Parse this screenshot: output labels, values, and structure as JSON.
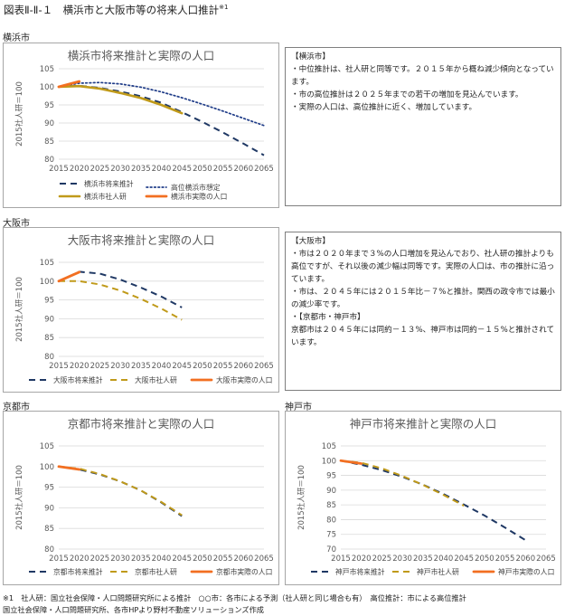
{
  "figure_title": "図表Ⅱ-Ⅱ-１　横浜市と大阪市等の将来人口推計",
  "figure_title_note": "※1",
  "colors": {
    "navy": "#1f3864",
    "mustard": "#c09a1a",
    "orange": "#f26f21",
    "blue_dotted": "#1f3c88"
  },
  "panels": [
    {
      "label": "横浜市",
      "note": {
        "heading": "【横浜市】",
        "lines": [
          "・中位推計は、社人研と同等です。２０１５年から概ね減少傾向となっています。",
          "・市の高位推計は２０２５年までの若干の増加を見込んでいます。",
          "・実際の人口は、高位推計に近く、増加しています。"
        ]
      }
    },
    {
      "label": "大阪市",
      "note": {
        "heading": "【大阪市】",
        "lines": [
          "・市は２０２０年まで３%の人口増加を見込んでおり、社人研の推計よりも高位ですが、それ以後の減少幅は同等です。実際の人口は、市の推計に沿っています。",
          "・市は、２０４５年には２０１５年比－７%と推計。関西の政令市では最小の減少率です。",
          "・【京都市・神戸市】",
          "京都市は２０４５年には同約－１３%、神戸市は同約－１５%と推計されています。"
        ]
      }
    },
    {
      "label": "京都市"
    },
    {
      "label": "神戸市"
    }
  ],
  "chart_data": [
    {
      "type": "line",
      "title": "横浜市将来推計と実際の人口",
      "ylabel": "2015社人研＝100",
      "xlim": [
        2015,
        2065
      ],
      "ylim": [
        80,
        105
      ],
      "x_ticks": [
        2015,
        2020,
        2025,
        2030,
        2035,
        2040,
        2045,
        2050,
        2055,
        2060,
        2065
      ],
      "y_ticks": [
        80,
        85,
        90,
        95,
        100,
        105
      ],
      "grid": true,
      "legend_position": "bottom",
      "series": [
        {
          "name": "横浜市将来推計",
          "style": "dash",
          "color": "#1f3864",
          "x": [
            2015,
            2020,
            2025,
            2030,
            2035,
            2040,
            2045,
            2050,
            2055,
            2060,
            2065
          ],
          "y": [
            100,
            100.3,
            99.7,
            98.7,
            97.4,
            95.6,
            93.0,
            90.3,
            87.4,
            84.3,
            81.1
          ]
        },
        {
          "name": "高位横浜市想定",
          "style": "dot",
          "color": "#1f3c88",
          "x": [
            2015,
            2020,
            2025,
            2030,
            2035,
            2040,
            2045,
            2050,
            2055,
            2060,
            2065
          ],
          "y": [
            100,
            101.0,
            101.2,
            100.8,
            99.9,
            98.6,
            97.0,
            95.2,
            93.3,
            91.3,
            89.3
          ]
        },
        {
          "name": "横浜市社人研",
          "style": "solid",
          "color": "#c09a1a",
          "x": [
            2015,
            2020,
            2025,
            2030,
            2035,
            2040,
            2045
          ],
          "y": [
            100,
            100.2,
            99.5,
            98.3,
            96.9,
            95.0,
            92.7
          ]
        },
        {
          "name": "横浜市実際の人口",
          "style": "solid-thick",
          "color": "#f26f21",
          "x": [
            2015,
            2020
          ],
          "y": [
            100,
            101.5
          ]
        }
      ]
    },
    {
      "type": "line",
      "title": "大阪市将来推計と実際の人口",
      "ylabel": "2015社人研＝100",
      "xlim": [
        2015,
        2065
      ],
      "ylim": [
        80,
        105
      ],
      "x_ticks": [
        2015,
        2020,
        2025,
        2030,
        2035,
        2040,
        2045,
        2050,
        2055,
        2060,
        2065
      ],
      "y_ticks": [
        80,
        85,
        90,
        95,
        100,
        105
      ],
      "grid": true,
      "legend_position": "bottom",
      "series": [
        {
          "name": "大阪市将来推計",
          "style": "dash",
          "color": "#1f3864",
          "x": [
            2015,
            2020,
            2025,
            2030,
            2035,
            2040,
            2045
          ],
          "y": [
            100,
            102.5,
            102.0,
            100.4,
            98.3,
            95.9,
            93.0
          ]
        },
        {
          "name": "大阪市社人研",
          "style": "dash",
          "color": "#c09a1a",
          "x": [
            2015,
            2020,
            2025,
            2030,
            2035,
            2040,
            2045
          ],
          "y": [
            100,
            100.0,
            99.1,
            97.5,
            95.3,
            92.7,
            89.7
          ]
        },
        {
          "name": "大阪市実際の人口",
          "style": "solid-thick",
          "color": "#f26f21",
          "x": [
            2015,
            2020
          ],
          "y": [
            100,
            102.4
          ]
        }
      ]
    },
    {
      "type": "line",
      "title": "京都市将来推計と実際の人口",
      "ylabel": "2015社人研＝100",
      "xlim": [
        2015,
        2065
      ],
      "ylim": [
        80,
        105
      ],
      "x_ticks": [
        2015,
        2020,
        2025,
        2030,
        2035,
        2040,
        2045,
        2050,
        2055,
        2060,
        2065
      ],
      "y_ticks": [
        80,
        85,
        90,
        95,
        100,
        105
      ],
      "grid": true,
      "legend_position": "bottom",
      "series": [
        {
          "name": "京都市将来推計",
          "style": "dash",
          "color": "#1f3864",
          "x": [
            2015,
            2020,
            2025,
            2030,
            2035,
            2040,
            2045
          ],
          "y": [
            100,
            99.3,
            98.1,
            96.4,
            94.2,
            91.3,
            88.0
          ]
        },
        {
          "name": "京都市社人研",
          "style": "dash",
          "color": "#c09a1a",
          "x": [
            2015,
            2020,
            2025,
            2030,
            2035,
            2040,
            2045
          ],
          "y": [
            100,
            99.5,
            98.2,
            96.4,
            94.2,
            91.4,
            88.2
          ]
        },
        {
          "name": "京都市実際の人口",
          "style": "solid-thick",
          "color": "#f26f21",
          "x": [
            2015,
            2020
          ],
          "y": [
            100,
            99.3
          ]
        }
      ]
    },
    {
      "type": "line",
      "title": "神戸市将来推計と実際の人口",
      "ylabel": "2015社人研＝100",
      "xlim": [
        2015,
        2065
      ],
      "ylim": [
        70,
        105
      ],
      "x_ticks": [
        2015,
        2020,
        2025,
        2030,
        2035,
        2040,
        2045,
        2050,
        2055,
        2060,
        2065
      ],
      "y_ticks": [
        70,
        75,
        80,
        85,
        90,
        95,
        100,
        105
      ],
      "grid": true,
      "legend_position": "bottom",
      "series": [
        {
          "name": "神戸市将来推計",
          "style": "dash",
          "color": "#1f3864",
          "x": [
            2015,
            2020,
            2025,
            2030,
            2035,
            2040,
            2045,
            2050,
            2055,
            2060
          ],
          "y": [
            100,
            98.6,
            96.8,
            94.5,
            91.9,
            88.7,
            85.1,
            81.4,
            77.3,
            73.0
          ]
        },
        {
          "name": "神戸市社人研",
          "style": "dash",
          "color": "#c09a1a",
          "x": [
            2015,
            2020,
            2025,
            2030,
            2035,
            2040,
            2045
          ],
          "y": [
            100,
            99.3,
            97.4,
            94.8,
            91.8,
            88.4,
            84.7
          ]
        },
        {
          "name": "神戸市実際の人口",
          "style": "solid-thick",
          "color": "#f26f21",
          "x": [
            2015,
            2020
          ],
          "y": [
            100,
            99.0
          ]
        }
      ]
    }
  ],
  "footnotes": [
    "※1　社人研：国立社会保障・人口問題研究所による推計　○○市：各市による予測（社人研と同じ場合も有）　高位推計：市による高位推計",
    "国立社会保障・人口問題研究所、各市HPより野村不動産ソリューションズ作成"
  ]
}
